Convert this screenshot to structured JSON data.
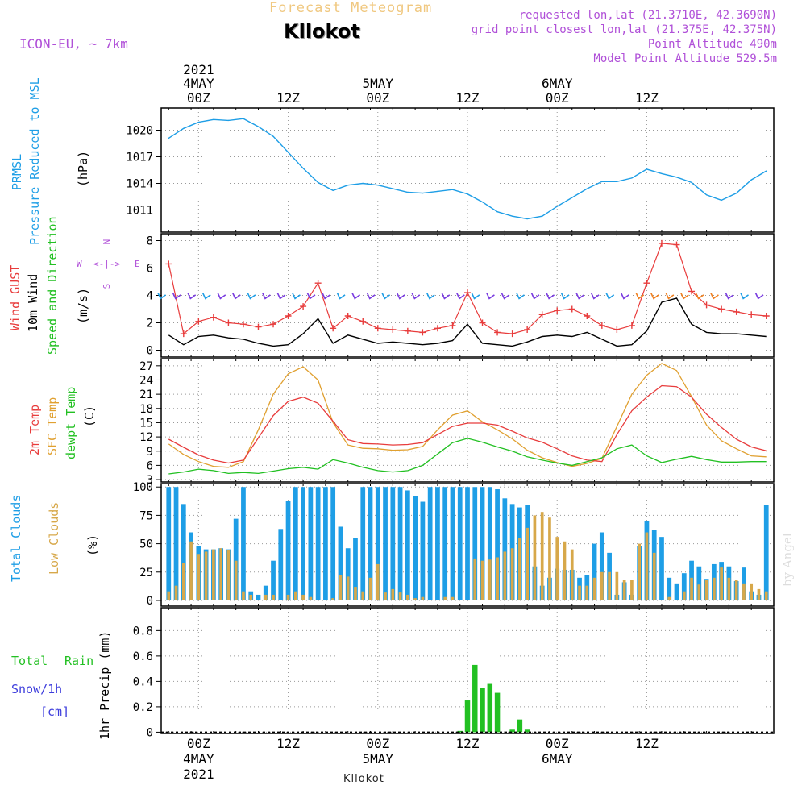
{
  "header": {
    "title_top": "Forecast Meteogram",
    "location": "Kllokot",
    "model": "ICON-EU, ~ 7km",
    "requested": "requested lon,lat (21.3710E, 42.3690N)",
    "grid_point": "grid point closest lon,lat (21.375E, 42.375N)",
    "point_altitude": "Point Altitude 490m",
    "model_altitude": "Model Point Altitude 529.5m",
    "footer_location": "Kllokot",
    "credit": "by Angel"
  },
  "colors": {
    "pressure": "#1e9ee6",
    "gust": "#e83c3c",
    "wind": "#000000",
    "wind_dir": "#22c022",
    "temp2m": "#e83c3c",
    "sfc": "#e0a030",
    "dew": "#22c022",
    "total_cloud": "#1e9ee6",
    "low_cloud": "#d7a84a",
    "rain": "#22c022",
    "snow": "#3c3cdc",
    "purple": "#b050d8",
    "orange_title": "#f0c880"
  },
  "chart_data": [
    {
      "type": "line",
      "name": "pressure",
      "ylabel": "PRMSL Pressure Reduced to MSL",
      "unit": "(hPa)",
      "ylim": [
        1008.5,
        1022.5
      ],
      "yticks": [
        1011,
        1014,
        1017,
        1020
      ],
      "x_top": [
        {
          "line1": "2021",
          "line2": "4MAY",
          "line3": "00Z"
        },
        {
          "line1": "",
          "line2": "",
          "line3": "12Z"
        },
        {
          "line1": "",
          "line2": "5MAY",
          "line3": "00Z"
        },
        {
          "line1": "",
          "line2": "",
          "line3": "12Z"
        },
        {
          "line1": "",
          "line2": "6MAY",
          "line3": "00Z"
        },
        {
          "line1": "",
          "line2": "",
          "line3": "12Z"
        }
      ],
      "x": [
        -4,
        -2,
        0,
        2,
        4,
        6,
        8,
        10,
        12,
        14,
        16,
        18,
        20,
        22,
        24,
        26,
        28,
        30,
        32,
        34,
        36,
        38,
        40,
        42,
        44,
        46,
        48,
        50,
        52,
        54,
        56,
        58,
        60,
        62,
        64,
        66,
        68,
        70,
        72,
        74,
        76
      ],
      "values": [
        1019.1,
        1020.2,
        1020.9,
        1021.2,
        1021.1,
        1021.3,
        1020.4,
        1019.3,
        1017.5,
        1015.7,
        1014.1,
        1013.2,
        1013.8,
        1014.0,
        1013.8,
        1013.4,
        1013.0,
        1012.9,
        1013.1,
        1013.3,
        1012.8,
        1011.9,
        1010.8,
        1010.3,
        1010.0,
        1010.3,
        1011.4,
        1012.4,
        1013.4,
        1014.2,
        1014.2,
        1014.6,
        1015.6,
        1015.1,
        1014.7,
        1014.1,
        1012.7,
        1012.1,
        1012.9,
        1014.4,
        1015.4
      ]
    },
    {
      "type": "line",
      "name": "wind",
      "ylabel": "Wind GUST / 10m Wind / Speed and Direction",
      "unit": "(m/s)",
      "compass": [
        "N",
        "W",
        "E",
        "S"
      ],
      "ylim": [
        -0.5,
        8.5
      ],
      "yticks": [
        0,
        2,
        4,
        6,
        8
      ],
      "x": [
        -4,
        -2,
        0,
        2,
        4,
        6,
        8,
        10,
        12,
        14,
        16,
        18,
        20,
        22,
        24,
        26,
        28,
        30,
        32,
        34,
        36,
        38,
        40,
        42,
        44,
        46,
        48,
        50,
        52,
        54,
        56,
        58,
        60,
        62,
        64,
        66,
        68,
        70,
        72,
        74,
        76
      ],
      "series": [
        {
          "name": "Wind GUST",
          "values": [
            6.3,
            1.2,
            2.1,
            2.4,
            2.0,
            1.9,
            1.7,
            1.9,
            2.5,
            3.2,
            4.9,
            1.6,
            2.5,
            2.1,
            1.6,
            1.5,
            1.4,
            1.3,
            1.6,
            1.8,
            4.2,
            2.0,
            1.3,
            1.2,
            1.5,
            2.6,
            2.9,
            3.0,
            2.5,
            1.8,
            1.5,
            1.8,
            4.9,
            7.8,
            7.7,
            4.3,
            3.3,
            3.0,
            2.8,
            2.6,
            2.5
          ]
        },
        {
          "name": "10m Wind",
          "values": [
            1.1,
            0.4,
            1.0,
            1.1,
            0.9,
            0.8,
            0.5,
            0.3,
            0.4,
            1.2,
            2.3,
            0.5,
            1.1,
            0.8,
            0.5,
            0.6,
            0.5,
            0.4,
            0.5,
            0.7,
            1.9,
            0.5,
            0.4,
            0.3,
            0.6,
            1.0,
            1.1,
            1.0,
            1.3,
            0.8,
            0.3,
            0.4,
            1.4,
            3.5,
            3.8,
            1.9,
            1.3,
            1.2,
            1.2,
            1.1,
            1.0
          ]
        }
      ]
    },
    {
      "type": "line",
      "name": "temperature",
      "ylabel": "2m Temp / SFC Temp / dewpt Temp",
      "unit": "(C)",
      "ylim": [
        2.5,
        28.5
      ],
      "yticks": [
        3,
        6,
        9,
        12,
        15,
        18,
        21,
        24,
        27
      ],
      "x": [
        -4,
        -2,
        0,
        2,
        4,
        6,
        8,
        10,
        12,
        14,
        16,
        18,
        20,
        22,
        24,
        26,
        28,
        30,
        32,
        34,
        36,
        38,
        40,
        42,
        44,
        46,
        48,
        50,
        52,
        54,
        56,
        58,
        60,
        62,
        64,
        66,
        68,
        70,
        72,
        74,
        76
      ],
      "series": [
        {
          "name": "2m Temp",
          "values": [
            11.5,
            9.8,
            8.2,
            7.1,
            6.5,
            7.1,
            11.8,
            16.5,
            19.5,
            20.4,
            19.1,
            15.3,
            11.4,
            10.6,
            10.5,
            10.3,
            10.4,
            10.8,
            12.5,
            14.2,
            14.9,
            14.9,
            14.5,
            13.2,
            11.8,
            10.9,
            9.5,
            8.0,
            7.1,
            6.8,
            12.5,
            17.5,
            20.4,
            22.8,
            22.6,
            20.4,
            16.8,
            14.0,
            11.5,
            9.9,
            9.1
          ]
        },
        {
          "name": "SFC Temp",
          "values": [
            10.5,
            8.3,
            6.8,
            5.8,
            5.6,
            6.8,
            13.5,
            21.0,
            25.3,
            26.8,
            24.0,
            15.0,
            10.3,
            9.6,
            9.5,
            9.2,
            9.3,
            10.0,
            13.5,
            16.6,
            17.5,
            15.2,
            13.5,
            11.6,
            9.2,
            7.6,
            6.6,
            5.8,
            6.4,
            7.5,
            14.2,
            21.0,
            25.0,
            27.5,
            26.0,
            20.5,
            14.5,
            11.2,
            9.5,
            8.0,
            7.8
          ]
        },
        {
          "name": "dewpt Temp",
          "values": [
            4.2,
            4.6,
            5.2,
            4.9,
            4.3,
            4.5,
            4.3,
            4.8,
            5.3,
            5.6,
            5.2,
            7.2,
            6.5,
            5.6,
            4.9,
            4.6,
            4.9,
            6.0,
            8.4,
            10.8,
            11.7,
            10.9,
            9.9,
            9.0,
            7.8,
            7.1,
            6.5,
            6.0,
            6.8,
            7.6,
            9.5,
            10.3,
            8.0,
            6.6,
            7.3,
            7.9,
            7.2,
            6.7,
            6.7,
            6.8,
            6.8
          ]
        }
      ]
    },
    {
      "type": "bar",
      "name": "clouds",
      "ylabel": "Total Clouds / Low Clouds",
      "unit": "(%)",
      "ylim": [
        -5,
        103
      ],
      "yticks": [
        0,
        25,
        50,
        75,
        100
      ],
      "x_start": -4,
      "x_step": 1,
      "series": [
        {
          "name": "Total Clouds",
          "values": [
            100,
            100,
            85,
            60,
            48,
            45,
            45,
            46,
            45,
            72,
            100,
            8,
            5,
            13,
            35,
            63,
            88,
            100,
            100,
            100,
            100,
            100,
            100,
            65,
            46,
            55,
            100,
            100,
            100,
            100,
            100,
            100,
            97,
            92,
            87,
            100,
            100,
            100,
            100,
            100,
            100,
            100,
            100,
            100,
            98,
            90,
            85,
            82,
            84,
            30,
            13,
            20,
            28,
            27,
            27,
            20,
            22,
            50,
            60,
            42,
            5,
            16,
            5,
            48,
            70,
            62,
            56,
            20,
            15,
            24,
            35,
            30,
            19,
            32,
            34,
            30,
            17,
            29,
            8,
            5,
            84
          ]
        },
        {
          "name": "Low Clouds",
          "values": [
            8,
            13,
            33,
            52,
            41,
            43,
            45,
            46,
            44,
            35,
            8,
            5,
            0,
            5,
            5,
            0,
            5,
            8,
            5,
            3,
            0,
            0,
            2,
            22,
            21,
            12,
            8,
            20,
            32,
            7,
            10,
            7,
            5,
            2,
            3,
            0,
            0,
            3,
            3,
            0,
            0,
            37,
            35,
            36,
            38,
            43,
            46,
            55,
            64,
            75,
            78,
            73,
            56,
            52,
            45,
            13,
            13,
            20,
            25,
            25,
            25,
            18,
            18,
            50,
            60,
            42,
            0,
            3,
            0,
            8,
            20,
            14,
            18,
            20,
            29,
            20,
            18,
            15,
            15,
            10,
            8
          ]
        }
      ]
    },
    {
      "type": "bar",
      "name": "precipitation",
      "ylabel": "1hr Precip (mm)",
      "side_labels": [
        "Total",
        "Rain",
        "Snow/1h",
        "[cm]"
      ],
      "ylim": [
        -0.01,
        0.98
      ],
      "yticks": [
        0,
        0.2,
        0.4,
        0.6,
        0.8
      ],
      "x_top": [],
      "x_bottom": [
        {
          "line1": "00Z",
          "line2": "4MAY",
          "line3": "2021"
        },
        {
          "line1": "12Z",
          "line2": "",
          "line3": ""
        },
        {
          "line1": "00Z",
          "line2": "5MAY",
          "line3": ""
        },
        {
          "line1": "12Z",
          "line2": "",
          "line3": ""
        },
        {
          "line1": "00Z",
          "line2": "6MAY",
          "line3": ""
        },
        {
          "line1": "12Z",
          "line2": "",
          "line3": ""
        }
      ],
      "x_start": -4,
      "x_step": 1,
      "values": [
        0,
        0,
        0,
        0,
        0,
        0,
        0,
        0,
        0,
        0,
        0,
        0,
        0,
        0,
        0,
        0,
        0,
        0,
        0,
        0,
        0,
        0,
        0,
        0,
        0,
        0,
        0,
        0,
        0,
        0,
        0,
        0,
        0,
        0,
        0,
        0,
        0,
        0,
        0,
        0.01,
        0.25,
        0.53,
        0.35,
        0.38,
        0.31,
        0,
        0.02,
        0.1,
        0.02,
        0,
        0,
        0,
        0,
        0,
        0,
        0,
        0,
        0,
        0,
        0,
        0,
        0,
        0,
        0,
        0,
        0,
        0,
        0,
        0,
        0,
        0,
        0,
        0,
        0,
        0,
        0,
        0,
        0,
        0,
        0,
        0
      ]
    }
  ]
}
